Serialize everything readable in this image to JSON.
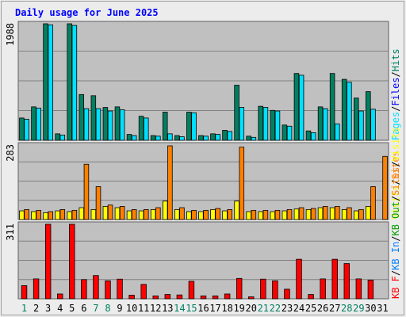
{
  "title": "Daily usage for June 2025",
  "colors": {
    "background": "#c0c0c0",
    "frame": "#ececec",
    "grid": "#808080",
    "title": "#0000ff",
    "pages": "#00e0ff",
    "files": "#0000ff",
    "hits": "#008060",
    "visits": "#ffff00",
    "sites": "#ff8000",
    "kb_f": "#ff0000",
    "kb_in": "#0080ff",
    "kb_out": "#00a000",
    "weekend_day": "#008060",
    "weekday": "#000000"
  },
  "chart_data": [
    {
      "type": "bar",
      "panel": "hits-files-pages",
      "max_label": "1988",
      "ylim": [
        0,
        1988
      ],
      "legend": [
        {
          "text": "Pages",
          "color": "#00e0ff"
        },
        {
          "text": "/",
          "color": "#000000"
        },
        {
          "text": "Files",
          "color": "#0000ff"
        },
        {
          "text": "/",
          "color": "#000000"
        },
        {
          "text": "Hits",
          "color": "#008060"
        }
      ],
      "categories": [
        "1",
        "2",
        "3",
        "4",
        "5",
        "6",
        "7",
        "8",
        "9",
        "10",
        "11",
        "12",
        "13",
        "14",
        "15",
        "16",
        "17",
        "18",
        "19",
        "20",
        "21",
        "22",
        "23",
        "24",
        "25",
        "26",
        "27",
        "28",
        "29",
        "30",
        "31"
      ],
      "series": [
        {
          "name": "Hits",
          "color": "#008060",
          "values": [
            380,
            570,
            1988,
            110,
            1988,
            780,
            760,
            560,
            570,
            100,
            410,
            80,
            480,
            80,
            480,
            80,
            110,
            170,
            940,
            70,
            580,
            510,
            260,
            1140,
            160,
            570,
            1140,
            1040,
            720,
            830,
            0
          ]
        },
        {
          "name": "Pages",
          "color": "#00e0ff",
          "values": [
            360,
            550,
            1970,
            90,
            1960,
            540,
            540,
            500,
            520,
            80,
            380,
            70,
            110,
            60,
            470,
            70,
            100,
            150,
            560,
            50,
            560,
            500,
            240,
            1110,
            130,
            540,
            280,
            990,
            500,
            530,
            0
          ]
        }
      ]
    },
    {
      "type": "bar",
      "panel": "visits-sites",
      "max_label": "283",
      "ylim": [
        0,
        283
      ],
      "legend": [
        {
          "text": "Visits",
          "color": "#ffff00"
        },
        {
          "text": "/",
          "color": "#000000"
        },
        {
          "text": "Sites",
          "color": "#ff8000"
        }
      ],
      "categories": [
        "1",
        "2",
        "3",
        "4",
        "5",
        "6",
        "7",
        "8",
        "9",
        "10",
        "11",
        "12",
        "13",
        "14",
        "15",
        "16",
        "17",
        "18",
        "19",
        "20",
        "21",
        "22",
        "23",
        "24",
        "25",
        "26",
        "27",
        "28",
        "29",
        "30",
        "31"
      ],
      "series": [
        {
          "name": "Visits",
          "color": "#ffff00",
          "values": [
            33,
            30,
            26,
            33,
            30,
            45,
            38,
            50,
            45,
            33,
            33,
            38,
            70,
            38,
            30,
            30,
            38,
            33,
            70,
            30,
            30,
            30,
            33,
            40,
            38,
            45,
            45,
            38,
            33,
            50,
            0
          ]
        },
        {
          "name": "Sites",
          "color": "#ff8000",
          "values": [
            38,
            35,
            30,
            38,
            35,
            210,
            125,
            55,
            50,
            38,
            38,
            45,
            280,
            45,
            35,
            35,
            42,
            38,
            275,
            35,
            35,
            35,
            38,
            45,
            42,
            50,
            50,
            45,
            38,
            125,
            240
          ]
        }
      ]
    },
    {
      "type": "bar",
      "panel": "kbytes",
      "max_label": "311",
      "ylim": [
        0,
        311
      ],
      "legend": [
        {
          "text": "KB F",
          "color": "#ff0000"
        },
        {
          "text": "/",
          "color": "#000000"
        },
        {
          "text": "KB In",
          "color": "#0080ff"
        },
        {
          "text": "/",
          "color": "#000000"
        },
        {
          "text": "KB Out",
          "color": "#00a000"
        },
        {
          "text": "/",
          "color": "#000000"
        },
        {
          "text": "Sites",
          "color": "#ff8000"
        },
        {
          "text": "/",
          "color": "#000000"
        },
        {
          "text": "Visits",
          "color": "#ffff00"
        }
      ],
      "categories": [
        "1",
        "2",
        "3",
        "4",
        "5",
        "6",
        "7",
        "8",
        "9",
        "10",
        "11",
        "12",
        "13",
        "14",
        "15",
        "16",
        "17",
        "18",
        "19",
        "20",
        "21",
        "22",
        "23",
        "24",
        "25",
        "26",
        "27",
        "28",
        "29",
        "30",
        "31"
      ],
      "series": [
        {
          "name": "KB F",
          "color": "#ff0000",
          "values": [
            55,
            83,
            311,
            20,
            311,
            80,
            97,
            75,
            82,
            15,
            60,
            12,
            18,
            16,
            73,
            12,
            12,
            20,
            85,
            8,
            82,
            75,
            40,
            165,
            18,
            83,
            165,
            147,
            83,
            78,
            0
          ]
        }
      ]
    }
  ],
  "day_labels": [
    {
      "text": "1",
      "weekend": true
    },
    {
      "text": "2",
      "weekend": false
    },
    {
      "text": "3",
      "weekend": false
    },
    {
      "text": "4",
      "weekend": false
    },
    {
      "text": "5",
      "weekend": false
    },
    {
      "text": "6",
      "weekend": false
    },
    {
      "text": "7",
      "weekend": true
    },
    {
      "text": "8",
      "weekend": true
    },
    {
      "text": "9",
      "weekend": false
    },
    {
      "text": "10",
      "weekend": false
    },
    {
      "text": "11",
      "weekend": false
    },
    {
      "text": "12",
      "weekend": false
    },
    {
      "text": "13",
      "weekend": false
    },
    {
      "text": "14",
      "weekend": true
    },
    {
      "text": "15",
      "weekend": true
    },
    {
      "text": "16",
      "weekend": false
    },
    {
      "text": "17",
      "weekend": false
    },
    {
      "text": "18",
      "weekend": false
    },
    {
      "text": "19",
      "weekend": false
    },
    {
      "text": "20",
      "weekend": false
    },
    {
      "text": "21",
      "weekend": true
    },
    {
      "text": "22",
      "weekend": true
    },
    {
      "text": "23",
      "weekend": false
    },
    {
      "text": "24",
      "weekend": false
    },
    {
      "text": "25",
      "weekend": false
    },
    {
      "text": "26",
      "weekend": false
    },
    {
      "text": "27",
      "weekend": false
    },
    {
      "text": "28",
      "weekend": true
    },
    {
      "text": "29",
      "weekend": true
    },
    {
      "text": "30",
      "weekend": false
    },
    {
      "text": "31",
      "weekend": false
    }
  ]
}
